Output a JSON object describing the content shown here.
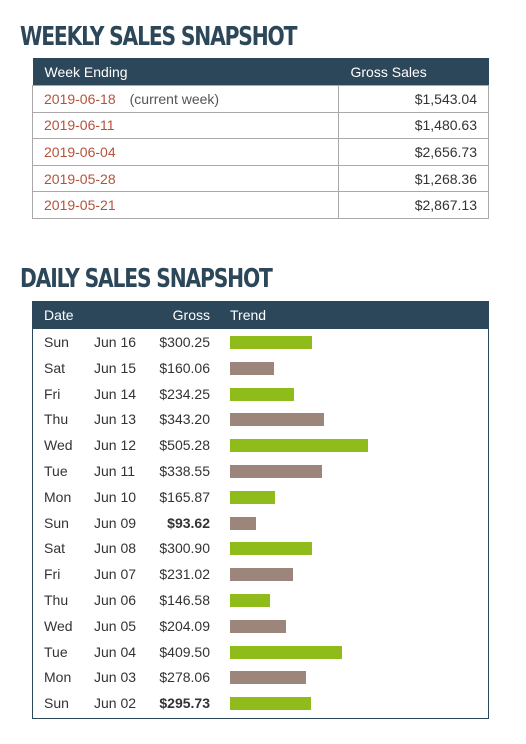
{
  "weekly": {
    "title": "WEEKLY SALES SNAPSHOT",
    "col_week": "Week Ending",
    "col_gross": "Gross Sales",
    "rows": [
      {
        "date": "2019-06-18",
        "note": "(current week)",
        "amount": "$1,543.04"
      },
      {
        "date": "2019-06-11",
        "note": "",
        "amount": "$1,480.63"
      },
      {
        "date": "2019-06-04",
        "note": "",
        "amount": "$2,656.73"
      },
      {
        "date": "2019-05-28",
        "note": "",
        "amount": "$1,268.36"
      },
      {
        "date": "2019-05-21",
        "note": "",
        "amount": "$2,867.13"
      }
    ]
  },
  "daily": {
    "title": "DAILY SALES SNAPSHOT",
    "col_date": "Date",
    "col_gross": "Gross",
    "col_trend": "Trend",
    "colors": {
      "up": "#8fbc1a",
      "down": "#9c857a",
      "header": "#2c4759",
      "date_link": "#b5533a"
    },
    "rows": [
      {
        "day": "Sun",
        "date": "Jun 16",
        "gross": "$300.25",
        "value": 300.25,
        "trend": "up",
        "bold": false
      },
      {
        "day": "Sat",
        "date": "Jun 15",
        "gross": "$160.06",
        "value": 160.06,
        "trend": "down",
        "bold": false
      },
      {
        "day": "Fri",
        "date": "Jun 14",
        "gross": "$234.25",
        "value": 234.25,
        "trend": "up",
        "bold": false
      },
      {
        "day": "Thu",
        "date": "Jun 13",
        "gross": "$343.20",
        "value": 343.2,
        "trend": "down",
        "bold": false
      },
      {
        "day": "Wed",
        "date": "Jun 12",
        "gross": "$505.28",
        "value": 505.28,
        "trend": "up",
        "bold": false
      },
      {
        "day": "Tue",
        "date": "Jun 11",
        "gross": "$338.55",
        "value": 338.55,
        "trend": "down",
        "bold": false
      },
      {
        "day": "Mon",
        "date": "Jun 10",
        "gross": "$165.87",
        "value": 165.87,
        "trend": "up",
        "bold": false
      },
      {
        "day": "Sun",
        "date": "Jun 09",
        "gross": "$93.62",
        "value": 93.62,
        "trend": "down",
        "bold": true
      },
      {
        "day": "Sat",
        "date": "Jun 08",
        "gross": "$300.90",
        "value": 300.9,
        "trend": "up",
        "bold": false
      },
      {
        "day": "Fri",
        "date": "Jun 07",
        "gross": "$231.02",
        "value": 231.02,
        "trend": "down",
        "bold": false
      },
      {
        "day": "Thu",
        "date": "Jun 06",
        "gross": "$146.58",
        "value": 146.58,
        "trend": "up",
        "bold": false
      },
      {
        "day": "Wed",
        "date": "Jun 05",
        "gross": "$204.09",
        "value": 204.09,
        "trend": "down",
        "bold": false
      },
      {
        "day": "Tue",
        "date": "Jun 04",
        "gross": "$409.50",
        "value": 409.5,
        "trend": "up",
        "bold": false
      },
      {
        "day": "Mon",
        "date": "Jun 03",
        "gross": "$278.06",
        "value": 278.06,
        "trend": "down",
        "bold": false
      },
      {
        "day": "Sun",
        "date": "Jun 02",
        "gross": "$295.73",
        "value": 295.73,
        "trend": "up",
        "bold": true
      }
    ]
  }
}
